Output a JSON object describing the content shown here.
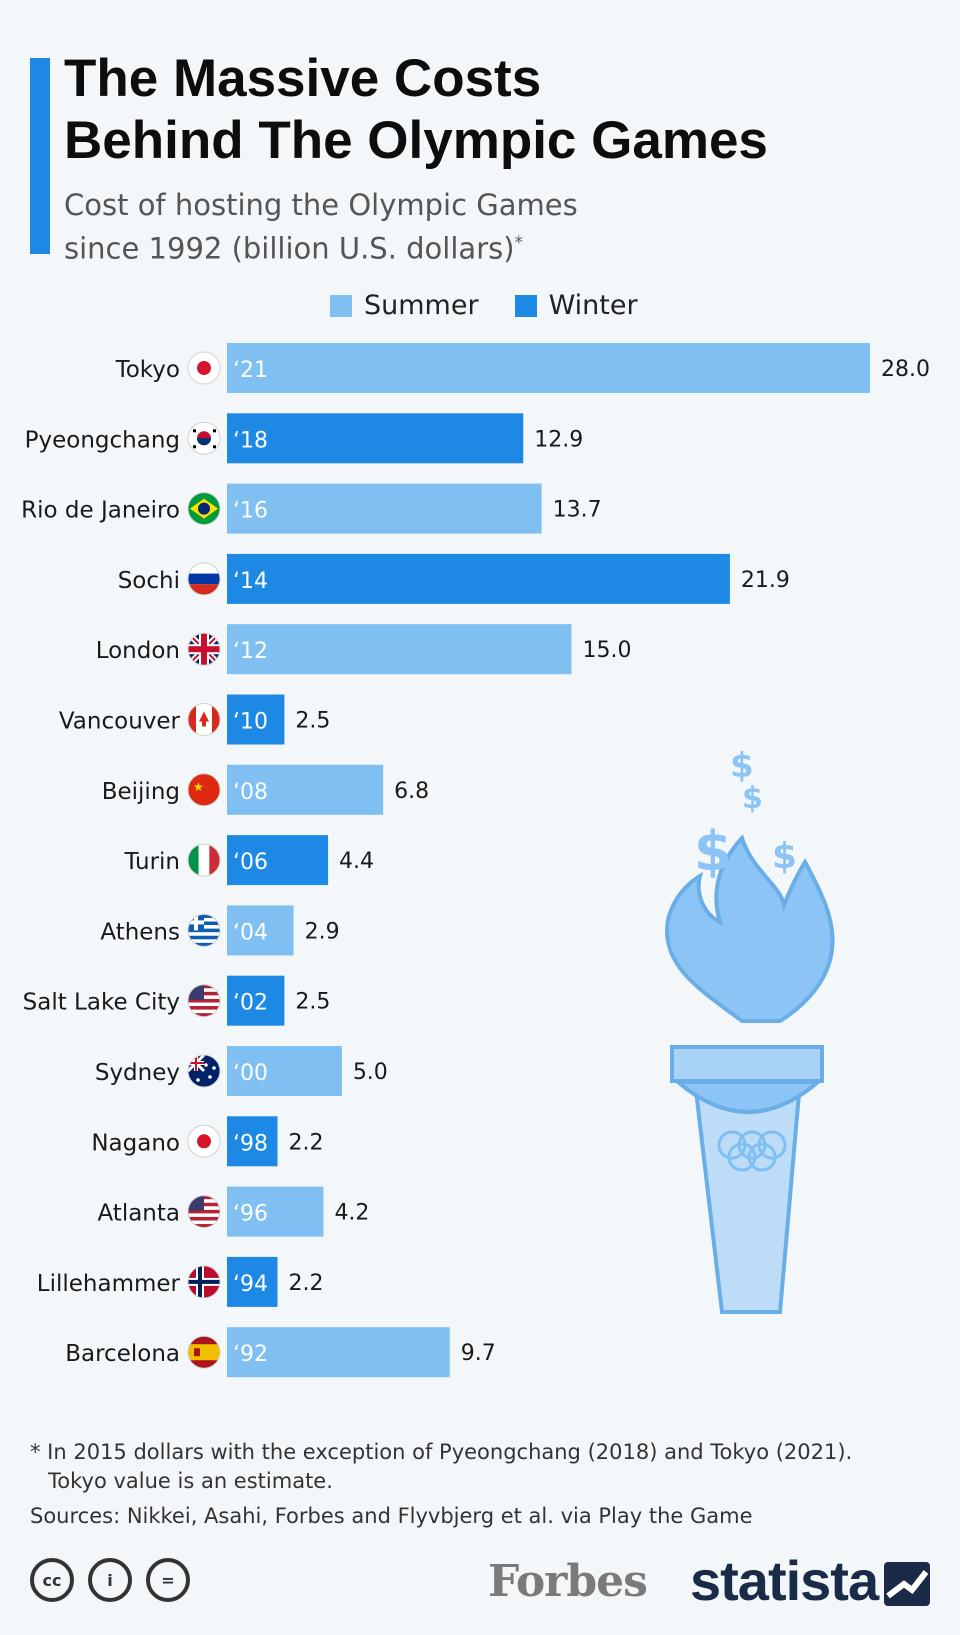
{
  "header": {
    "title_line1": "The Massive Costs",
    "title_line2": "Behind The Olympic Games",
    "subtitle_line1": "Cost of hosting the Olympic Games",
    "subtitle_line2": "since 1992 (billion U.S. dollars)",
    "subtitle_mark": "*"
  },
  "legend": {
    "summer": "Summer",
    "winter": "Winter"
  },
  "colors": {
    "summer": "#7fbff2",
    "winter": "#1e88e5",
    "accent": "#1e88e5",
    "torch": "#8cc4f5"
  },
  "chart_data": {
    "type": "bar",
    "orientation": "horizontal",
    "categories": [
      "Tokyo",
      "Pyeongchang",
      "Rio de Janeiro",
      "Sochi",
      "London",
      "Vancouver",
      "Beijing",
      "Turin",
      "Athens",
      "Salt Lake City",
      "Sydney",
      "Nagano",
      "Atlanta",
      "Lillehammer",
      "Barcelona"
    ],
    "years": [
      "‘21",
      "‘18",
      "‘16",
      "‘14",
      "‘12",
      "‘10",
      "‘08",
      "‘06",
      "‘04",
      "‘02",
      "‘00",
      "‘98",
      "‘96",
      "‘94",
      "‘92"
    ],
    "season": [
      "Summer",
      "Winter",
      "Summer",
      "Winter",
      "Summer",
      "Winter",
      "Summer",
      "Winter",
      "Summer",
      "Winter",
      "Summer",
      "Winter",
      "Summer",
      "Winter",
      "Summer"
    ],
    "values": [
      28.0,
      12.9,
      13.7,
      21.9,
      15.0,
      2.5,
      6.8,
      4.4,
      2.9,
      2.5,
      5.0,
      2.2,
      4.2,
      2.2,
      9.7
    ],
    "value_labels": [
      "28.0",
      "12.9",
      "13.7",
      "21.9",
      "15.0",
      "2.5",
      "6.8",
      "4.4",
      "2.9",
      "2.5",
      "5.0",
      "2.2",
      "4.2",
      "2.2",
      "9.7"
    ],
    "flags": [
      "japan-flag-icon",
      "south-korea-flag-icon",
      "brazil-flag-icon",
      "russia-flag-icon",
      "uk-flag-icon",
      "canada-flag-icon",
      "china-flag-icon",
      "italy-flag-icon",
      "greece-flag-icon",
      "usa-flag-icon",
      "australia-flag-icon",
      "japan-flag-icon",
      "usa-flag-icon",
      "norway-flag-icon",
      "spain-flag-icon"
    ],
    "xlim": [
      0,
      28.0
    ],
    "grid": false,
    "legend_position": "top"
  },
  "footnote": {
    "line1": "* In 2015 dollars with the exception of Pyeongchang (2018) and Tokyo (2021).",
    "line2": "Tokyo value is an estimate.",
    "sources": "Sources: Nikkei, Asahi, Forbes and Flyvbjerg et al. via Play the Game"
  },
  "branding": {
    "forbes": "Forbes",
    "statista": "statista",
    "license_icons": [
      "cc",
      "i",
      "="
    ]
  }
}
